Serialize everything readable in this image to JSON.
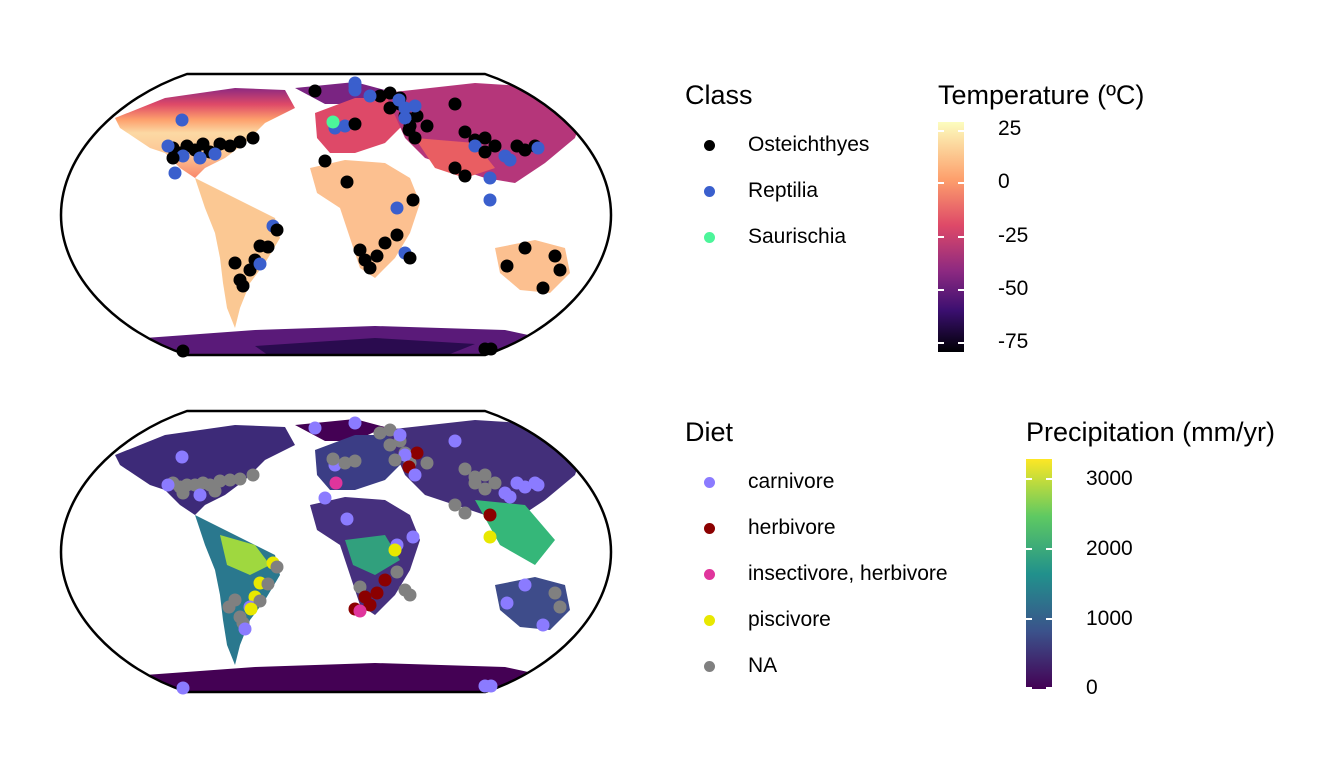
{
  "top_legend": {
    "class_title": "Class",
    "classes": [
      {
        "label": "Osteichthyes",
        "color": "#000000"
      },
      {
        "label": "Reptilia",
        "color": "#3a5fcd"
      },
      {
        "label": "Saurischia",
        "color": "#4cf59a"
      }
    ],
    "colorbar_title": "Temperature (ºC)",
    "colorbar_ticks": [
      "25",
      "0",
      "-25",
      "-50",
      "-75"
    ],
    "colorbar_colors": [
      "#fcfdbf",
      "#fd9f6c",
      "#de4968",
      "#8c2981",
      "#3b0f70",
      "#000004"
    ]
  },
  "bottom_legend": {
    "diet_title": "Diet",
    "diets": [
      {
        "label": "carnivore",
        "color": "#8b7bff"
      },
      {
        "label": "herbivore",
        "color": "#8b0000"
      },
      {
        "label": "insectivore, herbivore",
        "color": "#e0359c"
      },
      {
        "label": "piscivore",
        "color": "#e8e800"
      },
      {
        "label": "NA",
        "color": "#808080"
      }
    ],
    "colorbar_title": "Precipitation (mm/yr)",
    "colorbar_ticks": [
      "3000",
      "2000",
      "1000",
      "0"
    ],
    "colorbar_colors": [
      "#fde725",
      "#5ec962",
      "#21918c",
      "#3b528b",
      "#440154"
    ]
  }
}
